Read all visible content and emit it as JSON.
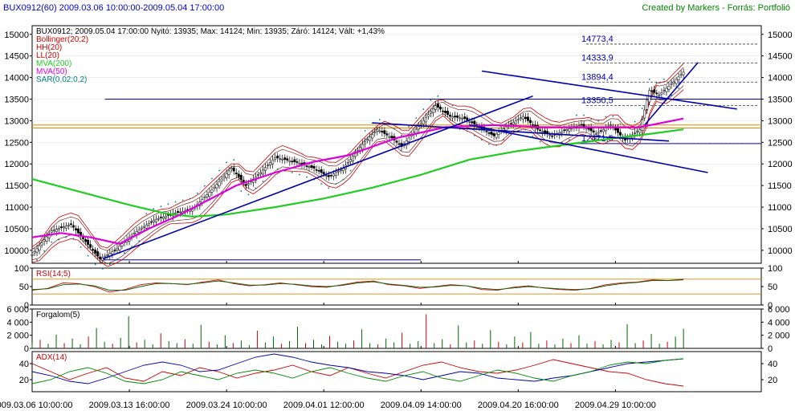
{
  "header": {
    "symbol_title": "BUX0912(60)  2009.03.06 10:00:00-2009.05.04 17:00:00",
    "credit": "Created by Markers - Forrás: Portfolió"
  },
  "chart_data": [
    {
      "type": "candlestick",
      "panel": "price",
      "info_line": "BUX0912; 2009.05.04 17:00:00 Nyitó: 13935; Max: 14124; Min: 13935; Záró: 14124; Vált: +1,43%",
      "legend": [
        {
          "label": "Bollinger(20;2)",
          "color": "#cc0000"
        },
        {
          "label": "HH(20)",
          "color": "#cc0000"
        },
        {
          "label": "LL(20)",
          "color": "#cc0000"
        },
        {
          "label": "MVA(200)",
          "color": "#22cc22"
        },
        {
          "label": "MVA(50)",
          "color": "#dd00dd"
        },
        {
          "label": "SAR(0,02;0,2)",
          "color": "#008080"
        }
      ],
      "ylim": [
        9700,
        15200
      ],
      "y_ticks": [
        "15000",
        "14500",
        "14000",
        "13500",
        "13000",
        "12500",
        "12000",
        "11500",
        "11000",
        "10500",
        "10000"
      ],
      "y_tick_values": [
        15000,
        14500,
        14000,
        13500,
        13000,
        12500,
        12000,
        11500,
        11000,
        10500,
        10000
      ],
      "levels": [
        {
          "label": "14773,4",
          "value": 14773.4
        },
        {
          "label": "14333,9",
          "value": 14333.9
        },
        {
          "label": "13894,4",
          "value": 13894.4
        },
        {
          "label": "13350,5",
          "value": 13350.5
        },
        {
          "label": "12471,5",
          "value": 12471.5
        }
      ],
      "close_path": [
        [
          0,
          9900
        ],
        [
          8,
          10450
        ],
        [
          16,
          10600
        ],
        [
          22,
          10200
        ],
        [
          28,
          9800
        ],
        [
          34,
          10000
        ],
        [
          42,
          10400
        ],
        [
          50,
          10700
        ],
        [
          58,
          10850
        ],
        [
          66,
          10950
        ],
        [
          74,
          11400
        ],
        [
          82,
          11900
        ],
        [
          88,
          11500
        ],
        [
          94,
          11800
        ],
        [
          100,
          12150
        ],
        [
          108,
          12050
        ],
        [
          116,
          11900
        ],
        [
          122,
          11700
        ],
        [
          128,
          11900
        ],
        [
          136,
          12450
        ],
        [
          142,
          12800
        ],
        [
          148,
          12600
        ],
        [
          152,
          12400
        ],
        [
          158,
          12800
        ],
        [
          166,
          13350
        ],
        [
          172,
          13100
        ],
        [
          178,
          13050
        ],
        [
          184,
          12850
        ],
        [
          190,
          12650
        ],
        [
          196,
          12900
        ],
        [
          202,
          13100
        ],
        [
          208,
          12800
        ],
        [
          214,
          12650
        ],
        [
          220,
          12800
        ],
        [
          226,
          12900
        ],
        [
          232,
          12700
        ],
        [
          238,
          12900
        ],
        [
          244,
          12550
        ],
        [
          250,
          12800
        ],
        [
          254,
          13700
        ],
        [
          258,
          13600
        ],
        [
          264,
          13900
        ],
        [
          268,
          14124
        ]
      ],
      "mva200": [
        [
          0,
          11650
        ],
        [
          20,
          11350
        ],
        [
          40,
          11050
        ],
        [
          55,
          10850
        ],
        [
          66,
          10780
        ],
        [
          80,
          10830
        ],
        [
          100,
          11000
        ],
        [
          120,
          11200
        ],
        [
          140,
          11450
        ],
        [
          160,
          11750
        ],
        [
          180,
          12100
        ],
        [
          200,
          12300
        ],
        [
          220,
          12450
        ],
        [
          240,
          12600
        ],
        [
          255,
          12700
        ],
        [
          268,
          12800
        ]
      ],
      "mva50": [
        [
          0,
          10300
        ],
        [
          12,
          10400
        ],
        [
          24,
          10300
        ],
        [
          36,
          10150
        ],
        [
          48,
          10500
        ],
        [
          60,
          10800
        ],
        [
          72,
          11150
        ],
        [
          84,
          11500
        ],
        [
          100,
          11800
        ],
        [
          116,
          12050
        ],
        [
          130,
          12200
        ],
        [
          150,
          12600
        ],
        [
          170,
          12850
        ],
        [
          190,
          12900
        ],
        [
          210,
          12850
        ],
        [
          230,
          12850
        ],
        [
          250,
          12850
        ],
        [
          268,
          13050
        ]
      ],
      "trendlines": [
        {
          "from": [
            29,
            9800
          ],
          "to": [
            206,
            13570
          ]
        },
        {
          "from": [
            140,
            12950
          ],
          "to": [
            262,
            12530
          ]
        },
        {
          "from": [
            180,
            12900
          ],
          "to": [
            278,
            11800
          ]
        },
        {
          "from": [
            185,
            14150
          ],
          "to": [
            290,
            13270
          ]
        },
        {
          "from": [
            252,
            12900
          ],
          "to": [
            274,
            14350
          ]
        }
      ],
      "horizontal_lines": [
        {
          "value": 13500,
          "x_from": 30,
          "x_to": 300
        },
        {
          "value": 9780,
          "x_from": 29,
          "x_to": 160
        },
        {
          "value": 12471.5,
          "x_from": 220,
          "x_to": 300
        },
        {
          "value": 12900,
          "x_from": 0,
          "x_to": 300,
          "color": "#dd8800"
        },
        {
          "value": 12830,
          "x_from": 0,
          "x_to": 300,
          "color": "#dd8800"
        }
      ],
      "xlim": [
        0,
        300
      ]
    },
    {
      "type": "line",
      "panel": "rsi",
      "legend": [
        {
          "label": "RSI(14;5)",
          "color": "#cc0000"
        }
      ],
      "ylim": [
        0,
        100
      ],
      "y_ticks": [
        "100",
        "50",
        "0"
      ],
      "y_tick_values": [
        100,
        50,
        0
      ],
      "bands": [
        70,
        30
      ],
      "series": [
        {
          "color": "#cc0000",
          "values": [
            40,
            45,
            60,
            58,
            50,
            35,
            42,
            55,
            60,
            58,
            55,
            62,
            68,
            58,
            52,
            55,
            60,
            55,
            50,
            48,
            55,
            62,
            65,
            55,
            52,
            45,
            50,
            55,
            52,
            42,
            40,
            48,
            52,
            46,
            42,
            40,
            45,
            55,
            60,
            62,
            68,
            66,
            70
          ]
        },
        {
          "color": "#006600",
          "values": [
            42,
            44,
            55,
            57,
            52,
            40,
            40,
            50,
            58,
            58,
            56,
            60,
            65,
            60,
            54,
            54,
            58,
            56,
            52,
            50,
            53,
            60,
            63,
            57,
            53,
            48,
            49,
            53,
            52,
            45,
            42,
            46,
            50,
            47,
            44,
            42,
            44,
            52,
            58,
            61,
            66,
            66,
            68
          ]
        }
      ]
    },
    {
      "type": "bar",
      "panel": "volume",
      "legend": [
        {
          "label": "Forgalom(5)",
          "color": "#000000"
        }
      ],
      "ylim": [
        0,
        6000
      ],
      "y_ticks": [
        "6 000",
        "4 000",
        "2 000",
        "0"
      ],
      "y_tick_values": [
        6000,
        4000,
        2000,
        0
      ],
      "values": [
        900,
        1300,
        700,
        2100,
        800,
        1500,
        600,
        1800,
        3100,
        1000,
        700,
        1600,
        4900,
        900,
        1300,
        600,
        2300,
        1100,
        800,
        1400,
        700,
        3600,
        1000,
        600,
        2000,
        800,
        1200,
        500,
        2700,
        900,
        1800,
        700,
        1100,
        3300,
        800,
        1300,
        600,
        1900,
        1000,
        700,
        1200,
        2900,
        800,
        600,
        1500,
        900,
        2400,
        700,
        1100,
        5200,
        800,
        1400,
        600,
        3500,
        900,
        1200,
        700,
        2800,
        1000,
        600,
        1800,
        900,
        2500,
        700,
        1200,
        600,
        1500,
        800,
        2000,
        700,
        1100,
        600,
        1300,
        900,
        3700,
        800,
        1200,
        2200,
        700,
        1000,
        1800,
        3000
      ],
      "colors_up": "#006600",
      "colors_down": "#cc0000"
    },
    {
      "type": "line",
      "panel": "adx",
      "legend": [
        {
          "label": "ADX(14)",
          "color": "#cc0000"
        }
      ],
      "ylim": [
        5,
        55
      ],
      "y_ticks": [
        "40",
        "20"
      ],
      "y_tick_values": [
        40,
        20
      ],
      "series": [
        {
          "color": "#cc0000",
          "values": [
            40,
            30,
            20,
            28,
            35,
            22,
            18,
            30,
            25,
            35,
            30,
            22,
            28,
            32,
            38,
            30,
            25,
            35,
            28,
            22,
            30,
            38,
            42,
            35,
            30,
            28,
            32,
            38,
            45,
            40,
            35,
            30,
            28,
            20,
            15,
            12
          ]
        },
        {
          "color": "#0000aa",
          "values": [
            30,
            25,
            18,
            15,
            22,
            30,
            38,
            42,
            38,
            30,
            32,
            40,
            48,
            52,
            48,
            42,
            38,
            35,
            30,
            28,
            25,
            20,
            25,
            30,
            28,
            22,
            20,
            18,
            22,
            25,
            30,
            35,
            40,
            42,
            44,
            46
          ]
        },
        {
          "color": "#008800",
          "values": [
            15,
            20,
            30,
            35,
            28,
            18,
            15,
            20,
            30,
            25,
            20,
            28,
            32,
            28,
            22,
            30,
            35,
            28,
            22,
            18,
            25,
            30,
            22,
            18,
            25,
            32,
            28,
            22,
            18,
            25,
            30,
            38,
            42,
            40,
            44,
            46
          ]
        }
      ]
    }
  ],
  "x_axis": {
    "tick_labels": [
      "2009.03.06 10:00:00",
      "2009.03.13 16:00:00",
      "2009.03.24 10:00:00",
      "2009.04.01 12:00:00",
      "2009.04.09 14:00:00",
      "2009.04.20 16:00:00",
      "2009.04.29 10:00:00"
    ],
    "tick_positions": [
      0,
      40,
      80,
      120,
      160,
      200,
      240
    ]
  }
}
